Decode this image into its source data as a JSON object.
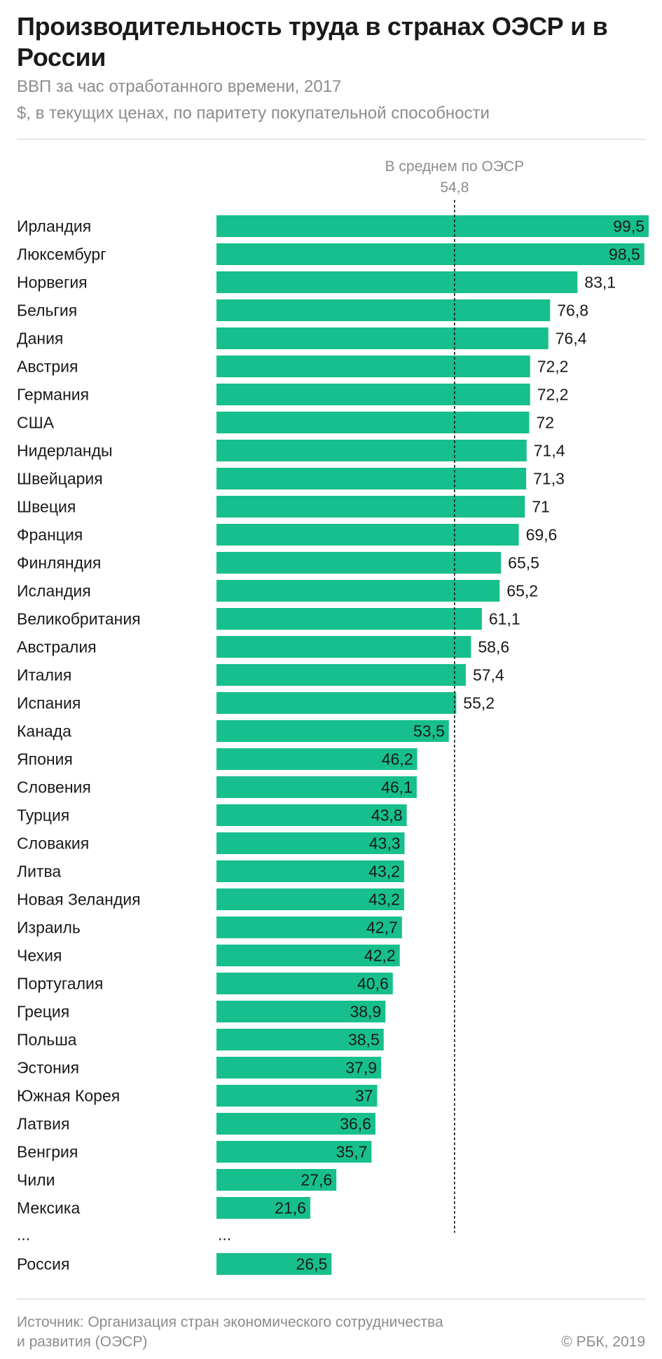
{
  "title": "Производительность труда в странах ОЭСР и в России",
  "subtitle_1": "ВВП за час отработанного времени, 2017",
  "subtitle_2": "$, в текущих ценах, по паритету покупательной способности",
  "source_line_1": "Источник: Организация стран экономического сотрудничества",
  "source_line_2": "и развития (ОЭСР)",
  "copyright": "© РБК, 2019",
  "colors": {
    "bar": "#17bf8d",
    "text": "#1a1a1a",
    "muted": "#8c8c8c"
  },
  "chart_data": {
    "type": "bar",
    "orientation": "horizontal",
    "title": "Производительность труда в странах ОЭСР и в России",
    "xlabel": "",
    "ylabel": "",
    "xlim": [
      0,
      99.5
    ],
    "categories": [
      "Ирландия",
      "Люксембург",
      "Норвегия",
      "Бельгия",
      "Дания",
      "Австрия",
      "Германия",
      "США",
      "Нидерланды",
      "Швейцария",
      "Швеция",
      "Франция",
      "Финляндия",
      "Исландия",
      "Великобритания",
      "Австралия",
      "Италия",
      "Испания",
      "Канада",
      "Япония",
      "Словения",
      "Турция",
      "Словакия",
      "Литва",
      "Новая Зеландия",
      "Израиль",
      "Чехия",
      "Португалия",
      "Греция",
      "Польша",
      "Эстония",
      "Южная Корея",
      "Латвия",
      "Венгрия",
      "Чили",
      "Мексика"
    ],
    "values": [
      99.5,
      98.5,
      83.1,
      76.8,
      76.4,
      72.2,
      72.2,
      72,
      71.4,
      71.3,
      71,
      69.6,
      65.5,
      65.2,
      61.1,
      58.6,
      57.4,
      55.2,
      53.5,
      46.2,
      46.1,
      43.8,
      43.3,
      43.2,
      43.2,
      42.7,
      42.2,
      40.6,
      38.9,
      38.5,
      37.9,
      37,
      36.6,
      35.7,
      27.6,
      21.6
    ],
    "value_labels": [
      "99,5",
      "98,5",
      "83,1",
      "76,8",
      "76,4",
      "72,2",
      "72,2",
      "72",
      "71,4",
      "71,3",
      "71",
      "69,6",
      "65,5",
      "65,2",
      "61,1",
      "58,6",
      "57,4",
      "55,2",
      "53,5",
      "46,2",
      "46,1",
      "43,8",
      "43,3",
      "43,2",
      "43,2",
      "42,7",
      "42,2",
      "40,6",
      "38,9",
      "38,5",
      "37,9",
      "37",
      "36,6",
      "35,7",
      "27,6",
      "21,6"
    ],
    "ellipsis_label": "...",
    "ellipsis_value": "...",
    "extra": {
      "category": "Россия",
      "value": 26.5,
      "value_label": "26,5"
    },
    "reference_line": {
      "label": "В среднем по ОЭСР",
      "value": 54.8,
      "value_label": "54,8"
    }
  }
}
